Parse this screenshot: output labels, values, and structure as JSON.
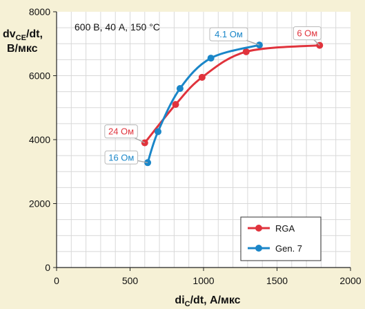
{
  "chart_data": {
    "type": "line",
    "title": "",
    "annotation": "600 В, 40 А, 150 °C",
    "xlabel_main": "di",
    "xlabel_sub": "C",
    "xlabel_rest": "/dt, А/мкс",
    "ylabel_line1_main": "dv",
    "ylabel_line1_sub": "CE",
    "ylabel_line1_rest": "/dt,",
    "ylabel_line2": "В/мкс",
    "xlim": [
      0,
      2000
    ],
    "ylim": [
      0,
      8000
    ],
    "x_ticks": [
      0,
      500,
      1000,
      1500,
      2000
    ],
    "y_ticks": [
      0,
      2000,
      4000,
      6000,
      8000
    ],
    "x_tick_labels": [
      "0",
      "500",
      "1000",
      "1500",
      "2000"
    ],
    "y_tick_labels": [
      "0",
      "2000",
      "4000",
      "6000",
      "8000"
    ],
    "grid": true,
    "legend_position": "bottom-right",
    "series": [
      {
        "name": "RGA",
        "color": "#e0333c",
        "x": [
          600,
          810,
          990,
          1290,
          1790
        ],
        "y": [
          3900,
          5100,
          5950,
          6750,
          6950
        ]
      },
      {
        "name": "Gen. 7",
        "color": "#1a86c8",
        "x": [
          620,
          690,
          840,
          1050,
          1380
        ],
        "y": [
          3280,
          4250,
          5600,
          6550,
          6960
        ]
      }
    ],
    "callouts": [
      {
        "text": "24 Ом",
        "series": "RGA",
        "point_index": 0
      },
      {
        "text": "6 Ом",
        "series": "RGA",
        "point_index": 4
      },
      {
        "text": "16 Ом",
        "series": "Gen. 7",
        "point_index": 0
      },
      {
        "text": "4.1 Ом",
        "series": "Gen. 7",
        "point_index": 4
      }
    ]
  }
}
